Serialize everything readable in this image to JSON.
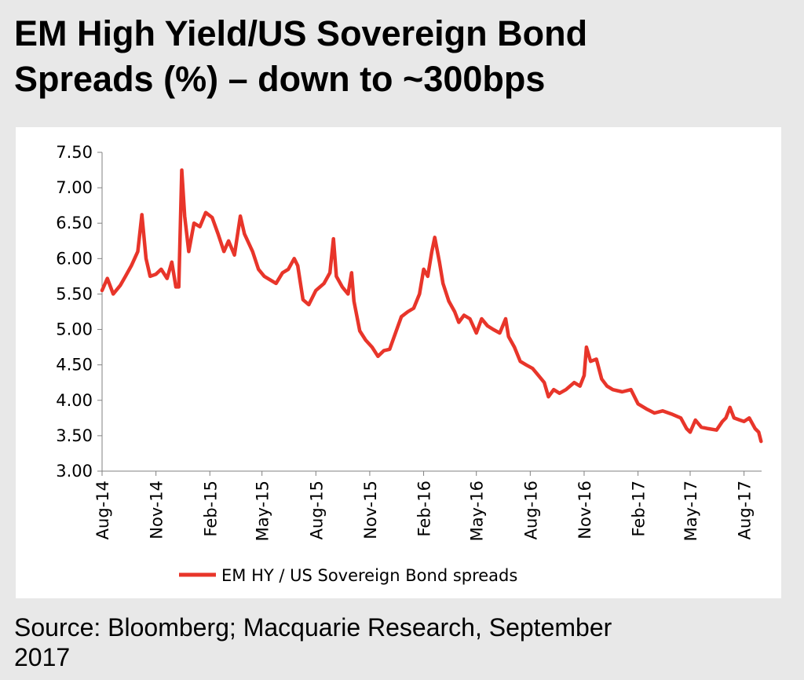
{
  "page": {
    "title_line1": "EM High Yield/US Sovereign Bond",
    "title_line2": "Spreads (%) – down to ~300bps",
    "source_line1": "Source: Bloomberg; Macquarie Research, September",
    "source_line2": "2017"
  },
  "chart_data": {
    "type": "line",
    "title": "",
    "xlabel": "",
    "ylabel": "",
    "ylim": [
      3.0,
      7.5
    ],
    "yticks": [
      "7.50",
      "7.00",
      "6.50",
      "6.00",
      "5.50",
      "5.00",
      "4.50",
      "4.00",
      "3.50",
      "3.00"
    ],
    "xlim": [
      "2014-08-01",
      "2017-08-31"
    ],
    "xticks": [
      "Aug-14",
      "Nov-14",
      "Feb-15",
      "May-15",
      "Aug-15",
      "Nov-15",
      "Feb-16",
      "May-16",
      "Aug-16",
      "Nov-16",
      "Feb-17",
      "May-17",
      "Aug-17"
    ],
    "grid": false,
    "legend_position": "bottom",
    "series": [
      {
        "name": "EM HY / US Sovereign Bond spreads",
        "color": "#e8352a",
        "points": [
          [
            "2014-08-01",
            5.55
          ],
          [
            "2014-08-10",
            5.72
          ],
          [
            "2014-08-20",
            5.5
          ],
          [
            "2014-09-01",
            5.62
          ],
          [
            "2014-09-10",
            5.75
          ],
          [
            "2014-09-20",
            5.9
          ],
          [
            "2014-10-01",
            6.1
          ],
          [
            "2014-10-08",
            6.62
          ],
          [
            "2014-10-15",
            6.0
          ],
          [
            "2014-10-22",
            5.75
          ],
          [
            "2014-11-01",
            5.78
          ],
          [
            "2014-11-10",
            5.85
          ],
          [
            "2014-11-20",
            5.72
          ],
          [
            "2014-11-28",
            5.95
          ],
          [
            "2014-12-05",
            5.6
          ],
          [
            "2014-12-10",
            5.6
          ],
          [
            "2014-12-15",
            7.25
          ],
          [
            "2014-12-20",
            6.6
          ],
          [
            "2014-12-27",
            6.1
          ],
          [
            "2015-01-05",
            6.5
          ],
          [
            "2015-01-15",
            6.45
          ],
          [
            "2015-01-25",
            6.65
          ],
          [
            "2015-02-05",
            6.58
          ],
          [
            "2015-02-15",
            6.35
          ],
          [
            "2015-02-25",
            6.1
          ],
          [
            "2015-03-05",
            6.25
          ],
          [
            "2015-03-15",
            6.05
          ],
          [
            "2015-03-25",
            6.6
          ],
          [
            "2015-04-01",
            6.35
          ],
          [
            "2015-04-15",
            6.1
          ],
          [
            "2015-04-25",
            5.85
          ],
          [
            "2015-05-05",
            5.75
          ],
          [
            "2015-05-15",
            5.7
          ],
          [
            "2015-05-25",
            5.65
          ],
          [
            "2015-06-05",
            5.8
          ],
          [
            "2015-06-15",
            5.85
          ],
          [
            "2015-06-25",
            6.0
          ],
          [
            "2015-07-01",
            5.9
          ],
          [
            "2015-07-10",
            5.42
          ],
          [
            "2015-07-20",
            5.35
          ],
          [
            "2015-08-01",
            5.55
          ],
          [
            "2015-08-15",
            5.65
          ],
          [
            "2015-08-25",
            5.8
          ],
          [
            "2015-08-31",
            6.28
          ],
          [
            "2015-09-05",
            5.75
          ],
          [
            "2015-09-15",
            5.6
          ],
          [
            "2015-09-25",
            5.5
          ],
          [
            "2015-10-01",
            5.8
          ],
          [
            "2015-10-05",
            5.4
          ],
          [
            "2015-10-15",
            4.98
          ],
          [
            "2015-10-25",
            4.85
          ],
          [
            "2015-11-05",
            4.75
          ],
          [
            "2015-11-15",
            4.62
          ],
          [
            "2015-11-25",
            4.7
          ],
          [
            "2015-12-05",
            4.72
          ],
          [
            "2015-12-15",
            4.95
          ],
          [
            "2015-12-25",
            5.18
          ],
          [
            "2016-01-05",
            5.25
          ],
          [
            "2016-01-15",
            5.3
          ],
          [
            "2016-01-25",
            5.5
          ],
          [
            "2016-02-01",
            5.85
          ],
          [
            "2016-02-08",
            5.75
          ],
          [
            "2016-02-15",
            6.1
          ],
          [
            "2016-02-20",
            6.3
          ],
          [
            "2016-02-28",
            5.95
          ],
          [
            "2016-03-05",
            5.65
          ],
          [
            "2016-03-15",
            5.4
          ],
          [
            "2016-03-25",
            5.25
          ],
          [
            "2016-04-01",
            5.1
          ],
          [
            "2016-04-10",
            5.2
          ],
          [
            "2016-04-20",
            5.15
          ],
          [
            "2016-05-01",
            4.95
          ],
          [
            "2016-05-10",
            5.15
          ],
          [
            "2016-05-20",
            5.05
          ],
          [
            "2016-05-30",
            5.0
          ],
          [
            "2016-06-10",
            4.95
          ],
          [
            "2016-06-20",
            5.15
          ],
          [
            "2016-06-25",
            4.9
          ],
          [
            "2016-07-05",
            4.75
          ],
          [
            "2016-07-15",
            4.55
          ],
          [
            "2016-07-25",
            4.5
          ],
          [
            "2016-08-05",
            4.45
          ],
          [
            "2016-08-15",
            4.35
          ],
          [
            "2016-08-25",
            4.25
          ],
          [
            "2016-09-01",
            4.05
          ],
          [
            "2016-09-10",
            4.15
          ],
          [
            "2016-09-20",
            4.1
          ],
          [
            "2016-10-01",
            4.15
          ],
          [
            "2016-10-15",
            4.25
          ],
          [
            "2016-10-25",
            4.2
          ],
          [
            "2016-11-01",
            4.35
          ],
          [
            "2016-11-05",
            4.75
          ],
          [
            "2016-11-12",
            4.55
          ],
          [
            "2016-11-22",
            4.58
          ],
          [
            "2016-12-01",
            4.3
          ],
          [
            "2016-12-10",
            4.2
          ],
          [
            "2016-12-20",
            4.15
          ],
          [
            "2017-01-05",
            4.12
          ],
          [
            "2017-01-20",
            4.15
          ],
          [
            "2017-02-01",
            3.95
          ],
          [
            "2017-02-15",
            3.88
          ],
          [
            "2017-03-01",
            3.82
          ],
          [
            "2017-03-15",
            3.85
          ],
          [
            "2017-04-01",
            3.8
          ],
          [
            "2017-04-15",
            3.75
          ],
          [
            "2017-04-25",
            3.6
          ],
          [
            "2017-05-01",
            3.55
          ],
          [
            "2017-05-10",
            3.72
          ],
          [
            "2017-05-20",
            3.62
          ],
          [
            "2017-06-01",
            3.6
          ],
          [
            "2017-06-15",
            3.58
          ],
          [
            "2017-06-25",
            3.7
          ],
          [
            "2017-07-01",
            3.75
          ],
          [
            "2017-07-08",
            3.9
          ],
          [
            "2017-07-15",
            3.75
          ],
          [
            "2017-07-25",
            3.72
          ],
          [
            "2017-08-01",
            3.7
          ],
          [
            "2017-08-10",
            3.75
          ],
          [
            "2017-08-20",
            3.6
          ],
          [
            "2017-08-26",
            3.55
          ],
          [
            "2017-08-30",
            3.42
          ]
        ]
      }
    ]
  }
}
